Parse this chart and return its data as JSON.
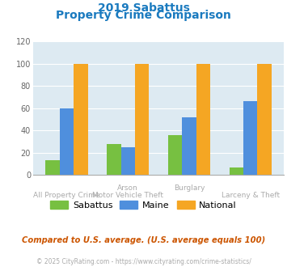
{
  "title_line1": "2019 Sabattus",
  "title_line2": "Property Crime Comparison",
  "sabattus": [
    13,
    28,
    36,
    7
  ],
  "maine": [
    60,
    25,
    52,
    66
  ],
  "national": [
    100,
    100,
    100,
    100
  ],
  "sabattus_color": "#77c041",
  "maine_color": "#4f8fdd",
  "national_color": "#f5a623",
  "ylim": [
    0,
    120
  ],
  "yticks": [
    0,
    20,
    40,
    60,
    80,
    100,
    120
  ],
  "bg_color": "#ddeaf2",
  "fig_bg": "#ffffff",
  "title_color": "#1a7abf",
  "top_labels": {
    "1": "Arson",
    "2": "Burglary"
  },
  "bottom_labels": {
    "0": "All Property Crime",
    "1": "Motor Vehicle Theft",
    "3": "Larceny & Theft"
  },
  "label_color": "#aaaaaa",
  "note_text": "Compared to U.S. average. (U.S. average equals 100)",
  "note_color": "#cc5500",
  "footer_text": "© 2025 CityRating.com - https://www.cityrating.com/crime-statistics/",
  "footer_color": "#aaaaaa"
}
